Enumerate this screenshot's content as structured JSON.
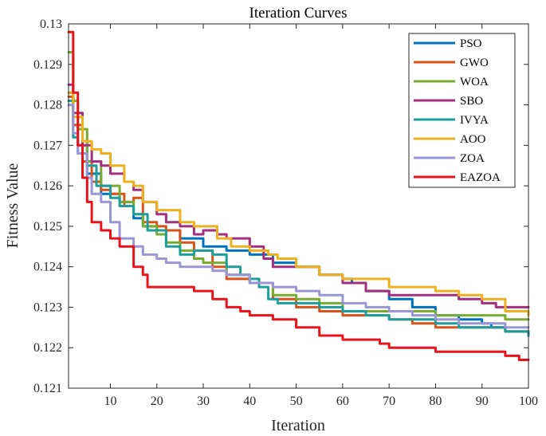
{
  "chart_data": {
    "type": "line",
    "title": "Iteration Curves",
    "xlabel": "Iteration",
    "ylabel": "Fitness Value",
    "xlim": [
      1,
      100
    ],
    "ylim": [
      0.121,
      0.13
    ],
    "xticks": [
      10,
      20,
      30,
      40,
      50,
      60,
      70,
      80,
      90,
      100
    ],
    "xtick_labels": [
      "10",
      "20",
      "30",
      "40",
      "50",
      "60",
      "70",
      "80",
      "90",
      "100"
    ],
    "yticks": [
      0.121,
      0.122,
      0.123,
      0.124,
      0.125,
      0.126,
      0.127,
      0.128,
      0.129,
      0.13
    ],
    "ytick_labels": [
      "0.121",
      "0.122",
      "0.123",
      "0.124",
      "0.125",
      "0.126",
      "0.127",
      "0.128",
      "0.129",
      "0.13"
    ],
    "legend_position": "top-right",
    "series": [
      {
        "name": "PSO",
        "color": "#0072BD",
        "points": [
          [
            1,
            0.1283
          ],
          [
            2,
            0.1275
          ],
          [
            3,
            0.127
          ],
          [
            5,
            0.1263
          ],
          [
            8,
            0.1258
          ],
          [
            12,
            0.1256
          ],
          [
            15,
            0.1252
          ],
          [
            17,
            0.125
          ],
          [
            20,
            0.1249
          ],
          [
            25,
            0.1247
          ],
          [
            30,
            0.1245
          ],
          [
            35,
            0.1244
          ],
          [
            40,
            0.1243
          ],
          [
            43,
            0.1243
          ],
          [
            45,
            0.1241
          ],
          [
            50,
            0.124
          ],
          [
            55,
            0.1238
          ],
          [
            60,
            0.1237
          ],
          [
            62,
            0.1236
          ],
          [
            65,
            0.1234
          ],
          [
            70,
            0.1232
          ],
          [
            75,
            0.123
          ],
          [
            80,
            0.1228
          ],
          [
            85,
            0.1227
          ],
          [
            90,
            0.1226
          ],
          [
            92,
            0.1225
          ],
          [
            95,
            0.1224
          ],
          [
            100,
            0.1223
          ]
        ]
      },
      {
        "name": "GWO",
        "color": "#D95319",
        "points": [
          [
            1,
            0.1282
          ],
          [
            2,
            0.1275
          ],
          [
            4,
            0.1266
          ],
          [
            6,
            0.1261
          ],
          [
            8,
            0.1259
          ],
          [
            10,
            0.1258
          ],
          [
            13,
            0.1255
          ],
          [
            15,
            0.1257
          ],
          [
            17,
            0.1251
          ],
          [
            20,
            0.125
          ],
          [
            22,
            0.1249
          ],
          [
            25,
            0.1246
          ],
          [
            28,
            0.1244
          ],
          [
            32,
            0.124
          ],
          [
            35,
            0.1237
          ],
          [
            40,
            0.1236
          ],
          [
            45,
            0.1232
          ],
          [
            50,
            0.123
          ],
          [
            55,
            0.1229
          ],
          [
            60,
            0.1228
          ],
          [
            65,
            0.1228
          ],
          [
            70,
            0.1227
          ],
          [
            75,
            0.1226
          ],
          [
            80,
            0.1225
          ],
          [
            85,
            0.1225
          ],
          [
            90,
            0.1225
          ],
          [
            95,
            0.1224
          ],
          [
            100,
            0.1224
          ]
        ]
      },
      {
        "name": "WOA",
        "color": "#77AC30",
        "points": [
          [
            1,
            0.1293
          ],
          [
            2,
            0.1281
          ],
          [
            3,
            0.1274
          ],
          [
            5,
            0.1266
          ],
          [
            8,
            0.126
          ],
          [
            12,
            0.1256
          ],
          [
            15,
            0.1253
          ],
          [
            17,
            0.125
          ],
          [
            20,
            0.1248
          ],
          [
            22,
            0.1246
          ],
          [
            25,
            0.1244
          ],
          [
            28,
            0.1242
          ],
          [
            30,
            0.1241
          ],
          [
            35,
            0.1238
          ],
          [
            40,
            0.1236
          ],
          [
            45,
            0.1233
          ],
          [
            50,
            0.1232
          ],
          [
            55,
            0.1231
          ],
          [
            60,
            0.1229
          ],
          [
            65,
            0.1229
          ],
          [
            70,
            0.1229
          ],
          [
            75,
            0.1229
          ],
          [
            80,
            0.1228
          ],
          [
            85,
            0.1228
          ],
          [
            90,
            0.1228
          ],
          [
            95,
            0.1227
          ],
          [
            100,
            0.1227
          ]
        ]
      },
      {
        "name": "SBO",
        "color": "#A2307F",
        "points": [
          [
            1,
            0.1285
          ],
          [
            2,
            0.1278
          ],
          [
            4,
            0.127
          ],
          [
            6,
            0.1266
          ],
          [
            8,
            0.1265
          ],
          [
            10,
            0.1263
          ],
          [
            13,
            0.1261
          ],
          [
            15,
            0.1259
          ],
          [
            17,
            0.1256
          ],
          [
            20,
            0.1253
          ],
          [
            22,
            0.1251
          ],
          [
            25,
            0.125
          ],
          [
            28,
            0.1248
          ],
          [
            30,
            0.1249
          ],
          [
            33,
            0.1248
          ],
          [
            35,
            0.1247
          ],
          [
            40,
            0.1245
          ],
          [
            43,
            0.1242
          ],
          [
            45,
            0.124
          ],
          [
            50,
            0.124
          ],
          [
            55,
            0.1238
          ],
          [
            60,
            0.1236
          ],
          [
            65,
            0.1234
          ],
          [
            70,
            0.1233
          ],
          [
            75,
            0.1233
          ],
          [
            80,
            0.1233
          ],
          [
            85,
            0.1232
          ],
          [
            90,
            0.1231
          ],
          [
            93,
            0.123
          ],
          [
            100,
            0.123
          ]
        ]
      },
      {
        "name": "IVYA",
        "color": "#1D9E9A",
        "points": [
          [
            1,
            0.1281
          ],
          [
            2,
            0.1272
          ],
          [
            3,
            0.1268
          ],
          [
            5,
            0.1265
          ],
          [
            7,
            0.126
          ],
          [
            10,
            0.1257
          ],
          [
            12,
            0.1255
          ],
          [
            15,
            0.1253
          ],
          [
            18,
            0.1249
          ],
          [
            20,
            0.1249
          ],
          [
            22,
            0.1245
          ],
          [
            25,
            0.1243
          ],
          [
            28,
            0.1244
          ],
          [
            30,
            0.1244
          ],
          [
            32,
            0.1243
          ],
          [
            35,
            0.124
          ],
          [
            38,
            0.1238
          ],
          [
            40,
            0.1237
          ],
          [
            42,
            0.1235
          ],
          [
            44,
            0.1232
          ],
          [
            46,
            0.1231
          ],
          [
            50,
            0.1231
          ],
          [
            55,
            0.123
          ],
          [
            60,
            0.1229
          ],
          [
            65,
            0.1228
          ],
          [
            70,
            0.1227
          ],
          [
            75,
            0.1227
          ],
          [
            80,
            0.1226
          ],
          [
            85,
            0.1225
          ],
          [
            90,
            0.1225
          ],
          [
            95,
            0.1224
          ],
          [
            100,
            0.1223
          ]
        ]
      },
      {
        "name": "AOO",
        "color": "#EDB120",
        "points": [
          [
            1,
            0.1283
          ],
          [
            2,
            0.1277
          ],
          [
            4,
            0.1271
          ],
          [
            6,
            0.1269
          ],
          [
            8,
            0.1268
          ],
          [
            10,
            0.1265
          ],
          [
            13,
            0.1261
          ],
          [
            15,
            0.126
          ],
          [
            17,
            0.1256
          ],
          [
            20,
            0.1254
          ],
          [
            23,
            0.1254
          ],
          [
            25,
            0.1251
          ],
          [
            28,
            0.125
          ],
          [
            32,
            0.125
          ],
          [
            33,
            0.1247
          ],
          [
            36,
            0.1245
          ],
          [
            40,
            0.1244
          ],
          [
            44,
            0.1243
          ],
          [
            46,
            0.1242
          ],
          [
            50,
            0.124
          ],
          [
            55,
            0.1238
          ],
          [
            60,
            0.1237
          ],
          [
            65,
            0.1237
          ],
          [
            70,
            0.1235
          ],
          [
            75,
            0.1235
          ],
          [
            80,
            0.1234
          ],
          [
            85,
            0.1233
          ],
          [
            90,
            0.1232
          ],
          [
            95,
            0.1229
          ],
          [
            100,
            0.1228
          ]
        ]
      },
      {
        "name": "ZOA",
        "color": "#9A96D6",
        "points": [
          [
            1,
            0.128
          ],
          [
            2,
            0.1273
          ],
          [
            3,
            0.1268
          ],
          [
            5,
            0.1262
          ],
          [
            6,
            0.1258
          ],
          [
            8,
            0.1256
          ],
          [
            10,
            0.1251
          ],
          [
            12,
            0.1247
          ],
          [
            15,
            0.1245
          ],
          [
            17,
            0.1243
          ],
          [
            20,
            0.1242
          ],
          [
            22,
            0.1241
          ],
          [
            25,
            0.124
          ],
          [
            28,
            0.124
          ],
          [
            32,
            0.1239
          ],
          [
            35,
            0.1238
          ],
          [
            40,
            0.1236
          ],
          [
            45,
            0.1235
          ],
          [
            50,
            0.1234
          ],
          [
            55,
            0.1233
          ],
          [
            60,
            0.1231
          ],
          [
            65,
            0.123
          ],
          [
            70,
            0.1229
          ],
          [
            75,
            0.1228
          ],
          [
            80,
            0.1227
          ],
          [
            85,
            0.1226
          ],
          [
            90,
            0.1226
          ],
          [
            95,
            0.1225
          ],
          [
            100,
            0.1225
          ]
        ]
      },
      {
        "name": "EAZOA",
        "color": "#E8141A",
        "points": [
          [
            1,
            0.1298
          ],
          [
            2,
            0.1283
          ],
          [
            3,
            0.127
          ],
          [
            4,
            0.1262
          ],
          [
            5,
            0.1256
          ],
          [
            6,
            0.1251
          ],
          [
            8,
            0.1249
          ],
          [
            10,
            0.1247
          ],
          [
            12,
            0.1245
          ],
          [
            15,
            0.124
          ],
          [
            17,
            0.1238
          ],
          [
            18,
            0.1235
          ],
          [
            20,
            0.1235
          ],
          [
            25,
            0.1235
          ],
          [
            28,
            0.1234
          ],
          [
            32,
            0.1232
          ],
          [
            35,
            0.123
          ],
          [
            38,
            0.1229
          ],
          [
            40,
            0.1228
          ],
          [
            45,
            0.1227
          ],
          [
            50,
            0.1225
          ],
          [
            55,
            0.1223
          ],
          [
            60,
            0.1222
          ],
          [
            65,
            0.1222
          ],
          [
            68,
            0.1221
          ],
          [
            70,
            0.122
          ],
          [
            75,
            0.122
          ],
          [
            80,
            0.1219
          ],
          [
            85,
            0.1219
          ],
          [
            90,
            0.1219
          ],
          [
            95,
            0.1218
          ],
          [
            98,
            0.1217
          ],
          [
            100,
            0.1217
          ]
        ]
      }
    ]
  }
}
